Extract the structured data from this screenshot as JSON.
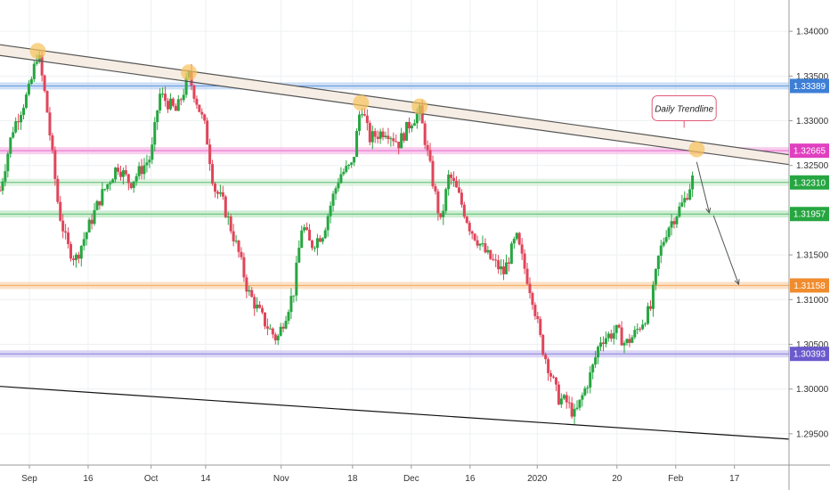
{
  "chart_data": {
    "type": "candlestick",
    "title": "",
    "xlabel": "",
    "ylabel": "",
    "ylim": [
      1.2915,
      1.3435
    ],
    "x_ticks": [
      "Sep",
      "16",
      "Oct",
      "14",
      "Nov",
      "18",
      "Dec",
      "16",
      "2020",
      "20",
      "Feb",
      "17"
    ],
    "x_tick_dates": [
      "2019-09-02",
      "2019-09-16",
      "2019-10-01",
      "2019-10-14",
      "2019-11-01",
      "2019-11-18",
      "2019-12-02",
      "2019-12-16",
      "2020-01-01",
      "2020-01-20",
      "2020-02-03",
      "2020-02-17"
    ],
    "y_ticks": [
      "1.34000",
      "1.33500",
      "1.33000",
      "1.32500",
      "1.31500",
      "1.31000",
      "1.30500",
      "1.30000",
      "1.29500"
    ],
    "y_tick_values": [
      1.34,
      1.335,
      1.33,
      1.325,
      1.315,
      1.31,
      1.305,
      1.3,
      1.295
    ],
    "levels": [
      {
        "value": 1.33389,
        "label": "1.33389",
        "color": "#3d7fd6",
        "band": "#bcd3f2"
      },
      {
        "value": 1.32665,
        "label": "1.32665",
        "color": "#e040c0",
        "band": "#f7bde8"
      },
      {
        "value": 1.3231,
        "label": "1.32310",
        "color": "#26a641",
        "band": "#d5efd9"
      },
      {
        "value": 1.31957,
        "label": "1.31957",
        "color": "#26a641",
        "band": "#bfe8c6"
      },
      {
        "value": 1.31158,
        "label": "1.31158",
        "color": "#f08c2e",
        "band": "#fbd7b3"
      },
      {
        "value": 1.30393,
        "label": "1.30393",
        "color": "#6a5acd",
        "band": "#cfc9f2"
      }
    ],
    "trendlines": [
      {
        "from": [
          "2019-08-26",
          1.3385
        ],
        "to": [
          "2020-03-01",
          1.3262
        ]
      },
      {
        "from": [
          "2019-08-26",
          1.3373
        ],
        "to": [
          "2020-03-01",
          1.3251
        ]
      },
      {
        "from": [
          "2019-08-26",
          1.3003
        ],
        "to": [
          "2020-03-01",
          1.2944
        ]
      }
    ],
    "touch_points": [
      [
        "2019-09-04",
        1.3378
      ],
      [
        "2019-10-10",
        1.3354
      ],
      [
        "2019-11-20",
        1.332
      ],
      [
        "2019-12-04",
        1.3316
      ],
      [
        "2020-02-08",
        1.3268
      ]
    ],
    "projection_arrows": [
      {
        "from": [
          "2020-02-08",
          1.3254
        ],
        "to": [
          "2020-02-11",
          1.3197
        ]
      },
      {
        "from": [
          "2020-02-12",
          1.3194
        ],
        "to": [
          "2020-02-18",
          1.3117
        ]
      }
    ],
    "callout": {
      "text": "Daily Trendline",
      "date": "2020-02-05",
      "value": 1.3314
    },
    "price_path": [
      [
        "2019-08-26",
        1.3222
      ],
      [
        "2019-08-29",
        1.329
      ],
      [
        "2019-09-02",
        1.3335
      ],
      [
        "2019-09-04",
        1.3378
      ],
      [
        "2019-09-06",
        1.332
      ],
      [
        "2019-09-09",
        1.32
      ],
      [
        "2019-09-11",
        1.316
      ],
      [
        "2019-09-13",
        1.3145
      ],
      [
        "2019-09-16",
        1.318
      ],
      [
        "2019-09-19",
        1.3215
      ],
      [
        "2019-09-23",
        1.325
      ],
      [
        "2019-09-26",
        1.323
      ],
      [
        "2019-10-01",
        1.326
      ],
      [
        "2019-10-03",
        1.333
      ],
      [
        "2019-10-07",
        1.331
      ],
      [
        "2019-10-10",
        1.335
      ],
      [
        "2019-10-14",
        1.329
      ],
      [
        "2019-10-16",
        1.3225
      ],
      [
        "2019-10-18",
        1.321
      ],
      [
        "2019-10-22",
        1.315
      ],
      [
        "2019-10-24",
        1.311
      ],
      [
        "2019-10-28",
        1.3075
      ],
      [
        "2019-10-31",
        1.3055
      ],
      [
        "2019-11-04",
        1.311
      ],
      [
        "2019-11-06",
        1.3185
      ],
      [
        "2019-11-08",
        1.316
      ],
      [
        "2019-11-11",
        1.3175
      ],
      [
        "2019-11-13",
        1.321
      ],
      [
        "2019-11-15",
        1.324
      ],
      [
        "2019-11-18",
        1.325
      ],
      [
        "2019-11-20",
        1.332
      ],
      [
        "2019-11-22",
        1.328
      ],
      [
        "2019-11-26",
        1.329
      ],
      [
        "2019-11-29",
        1.3275
      ],
      [
        "2019-12-02",
        1.33
      ],
      [
        "2019-12-04",
        1.331
      ],
      [
        "2019-12-06",
        1.326
      ],
      [
        "2019-12-09",
        1.3185
      ],
      [
        "2019-12-11",
        1.324
      ],
      [
        "2019-12-13",
        1.322
      ],
      [
        "2019-12-16",
        1.318
      ],
      [
        "2019-12-18",
        1.3165
      ],
      [
        "2019-12-20",
        1.315
      ],
      [
        "2019-12-24",
        1.313
      ],
      [
        "2019-12-27",
        1.317
      ],
      [
        "2019-12-31",
        1.31
      ],
      [
        "2020-01-02",
        1.305
      ],
      [
        "2020-01-06",
        1.299
      ],
      [
        "2020-01-08",
        1.2985
      ],
      [
        "2020-01-10",
        1.297
      ],
      [
        "2020-01-14",
        1.302
      ],
      [
        "2020-01-16",
        1.3055
      ],
      [
        "2020-01-20",
        1.3065
      ],
      [
        "2020-01-22",
        1.305
      ],
      [
        "2020-01-24",
        1.306
      ],
      [
        "2020-01-28",
        1.309
      ],
      [
        "2020-01-30",
        1.315
      ],
      [
        "2020-02-01",
        1.318
      ],
      [
        "2020-02-03",
        1.3195
      ],
      [
        "2020-02-05",
        1.321
      ],
      [
        "2020-02-07",
        1.3235
      ]
    ]
  },
  "colors": {
    "up": "#26a641",
    "down": "#e0455a",
    "trendline": "#555555",
    "channel_fill": "#f6ede4",
    "touch": "#f7c25a",
    "callout_border": "#e05a78",
    "grid": "#eef0f3",
    "axis": "#999999"
  }
}
